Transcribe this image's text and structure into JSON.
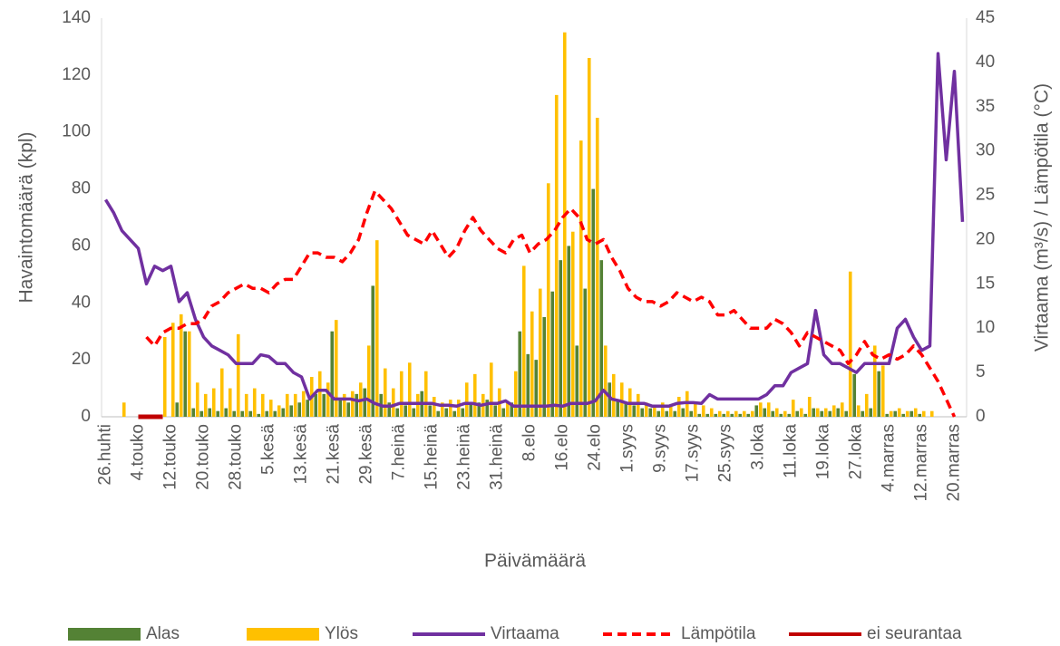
{
  "chart_data": {
    "type": "combo",
    "x_label": "Päivämäärä",
    "y_label": "Havaintomäärä (kpl)",
    "y2_label": "Virtaama (m³/s) / Lämpötila (°C)",
    "legend": "bottom",
    "grid": false,
    "ylim": [
      0,
      140
    ],
    "yticks": [
      0,
      20,
      40,
      60,
      80,
      100,
      120,
      140
    ],
    "y2lim": [
      0,
      45
    ],
    "y2ticks": [
      0,
      5,
      10,
      15,
      20,
      25,
      30,
      35,
      40,
      45
    ],
    "categories": [
      "26.huhti",
      null,
      null,
      null,
      "4.touko",
      null,
      null,
      null,
      "12.touko",
      null,
      null,
      null,
      "20.touko",
      null,
      null,
      null,
      "28.touko",
      null,
      null,
      null,
      "5.kesä",
      null,
      null,
      null,
      "13.kesä",
      null,
      null,
      null,
      "21.kesä",
      null,
      null,
      null,
      "29.kesä",
      null,
      null,
      null,
      "7.heinä",
      null,
      null,
      null,
      "15.heinä",
      null,
      null,
      null,
      "23.heinä",
      null,
      null,
      null,
      "31.heinä",
      null,
      null,
      null,
      "8.elo",
      null,
      null,
      null,
      "16.elo",
      null,
      null,
      null,
      "24.elo",
      null,
      null,
      null,
      "1.syys",
      null,
      null,
      null,
      "9.syys",
      null,
      null,
      null,
      "17.syys",
      null,
      null,
      null,
      "25.syys",
      null,
      null,
      null,
      "3.loka",
      null,
      null,
      null,
      "11.loka",
      null,
      null,
      null,
      "19.loka",
      null,
      null,
      null,
      "27.loka",
      null,
      null,
      null,
      "4.marras",
      null,
      null,
      null,
      "12.marras",
      null,
      null,
      null,
      "20.marras",
      null
    ],
    "series": [
      {
        "name": "Alas",
        "type": "bar",
        "color": "#548235",
        "values": [
          0,
          0,
          0,
          0,
          0,
          0,
          0,
          0,
          0,
          5,
          30,
          3,
          2,
          3,
          2,
          3,
          2,
          2,
          2,
          1,
          2,
          2,
          3,
          4,
          5,
          6,
          8,
          8,
          30,
          6,
          5,
          8,
          10,
          46,
          8,
          5,
          3,
          4,
          3,
          9,
          4,
          2,
          3,
          2,
          3,
          5,
          5,
          6,
          4,
          3,
          5,
          30,
          22,
          20,
          35,
          44,
          55,
          60,
          25,
          45,
          80,
          55,
          12,
          6,
          5,
          4,
          3,
          3,
          2,
          2,
          2,
          3,
          2,
          1,
          1,
          1,
          1,
          1,
          1,
          1,
          4,
          3,
          2,
          1,
          1,
          2,
          1,
          3,
          2,
          2,
          3,
          2,
          15,
          2,
          3,
          16,
          1,
          2,
          1,
          2,
          1,
          0,
          0,
          0,
          0,
          0
        ]
      },
      {
        "name": "Ylös",
        "type": "bar",
        "color": "#ffc000",
        "values": [
          0,
          0,
          5,
          0,
          0,
          0,
          0,
          28,
          33,
          36,
          30,
          12,
          8,
          10,
          17,
          10,
          29,
          8,
          10,
          8,
          6,
          4,
          8,
          8,
          9,
          14,
          16,
          12,
          34,
          8,
          9,
          12,
          25,
          62,
          17,
          10,
          16,
          19,
          8,
          16,
          7,
          5,
          6,
          6,
          12,
          15,
          8,
          19,
          10,
          5,
          16,
          53,
          37,
          45,
          82,
          113,
          135,
          65,
          97,
          126,
          105,
          25,
          15,
          12,
          10,
          8,
          5,
          4,
          5,
          4,
          7,
          9,
          5,
          4,
          3,
          2,
          2,
          2,
          2,
          2,
          5,
          5,
          3,
          2,
          6,
          3,
          7,
          3,
          3,
          4,
          5,
          51,
          4,
          8,
          25,
          18,
          2,
          3,
          2,
          3,
          2,
          2,
          0,
          0,
          0,
          0
        ]
      },
      {
        "name": "Virtaama",
        "type": "line",
        "axis": "y2",
        "color": "#7030a0",
        "values": [
          24.5,
          23,
          21,
          20,
          19,
          15,
          17,
          16.5,
          17,
          13,
          14,
          11,
          9,
          8,
          7.5,
          7,
          6,
          6,
          6,
          7,
          6.8,
          6,
          6,
          5,
          4.5,
          2,
          3,
          3,
          2,
          2,
          2,
          1.8,
          2,
          1.5,
          1.2,
          1.2,
          1.5,
          1.5,
          1.5,
          1.5,
          1.5,
          1.3,
          1.3,
          1.2,
          1.5,
          1.5,
          1.3,
          1.5,
          1.5,
          1.8,
          1.2,
          1.2,
          1.2,
          1.2,
          1.2,
          1.3,
          1.2,
          1.5,
          1.5,
          1.5,
          1.8,
          3,
          2,
          1.8,
          1.5,
          1.5,
          1.5,
          1.2,
          1.2,
          1.2,
          1.5,
          1.6,
          1.6,
          1.5,
          2.5,
          2,
          2,
          2,
          2,
          2,
          2,
          2.5,
          3.5,
          3.5,
          5,
          5.5,
          6,
          12,
          7,
          6,
          6,
          5.5,
          5,
          6,
          6,
          6,
          6,
          10,
          11,
          9,
          7.5,
          8,
          41,
          29,
          39,
          22
        ]
      },
      {
        "name": "Lämpötila",
        "type": "line",
        "axis": "y2",
        "dash": true,
        "color": "#ff0000",
        "values": [
          null,
          null,
          null,
          null,
          null,
          9,
          8,
          9.5,
          10,
          10,
          10.5,
          10.5,
          11,
          12.5,
          13,
          14,
          14.5,
          15,
          14.5,
          14.5,
          14,
          15,
          15.5,
          15.5,
          17,
          18.5,
          18.5,
          18,
          18,
          17.5,
          18.5,
          20,
          23,
          25.5,
          24.5,
          23.5,
          22,
          20.5,
          20,
          19.5,
          21,
          19.5,
          18,
          19,
          21,
          22.5,
          21,
          20,
          19,
          18.5,
          20,
          20.5,
          18.5,
          19.5,
          20,
          21,
          22.5,
          23.5,
          22.5,
          20,
          19.5,
          20,
          18,
          16.5,
          14.5,
          13.5,
          13,
          13,
          12.5,
          13,
          14,
          13.5,
          13,
          13.5,
          13,
          11.5,
          11.5,
          12,
          11,
          10,
          10,
          10,
          11,
          10.5,
          9.5,
          8,
          9.5,
          9,
          8.5,
          8,
          7.5,
          6,
          7,
          8.5,
          7,
          6.5,
          7,
          6.5,
          7,
          8,
          7,
          5.5,
          4,
          2,
          0,
          null
        ]
      },
      {
        "name": "ei seurantaa",
        "type": "line",
        "color": "#c00000",
        "values": [
          null,
          null,
          null,
          null,
          0,
          0,
          0,
          0,
          null,
          null,
          null,
          null,
          null,
          null,
          null,
          null,
          null,
          null,
          null,
          null,
          null,
          null,
          null,
          null,
          null,
          null,
          null,
          null,
          null,
          null,
          null,
          null,
          null,
          null,
          null,
          null,
          null,
          null,
          null,
          null,
          null,
          null,
          null,
          null,
          null,
          null,
          null,
          null,
          null,
          null,
          null,
          null,
          null,
          null,
          null,
          null,
          null,
          null,
          null,
          null,
          null,
          null,
          null,
          null,
          null,
          null,
          null,
          null,
          null,
          null,
          null,
          null,
          null,
          null,
          null,
          null,
          null,
          null,
          null,
          null,
          null,
          null,
          null,
          null,
          null,
          null,
          null,
          null,
          null,
          null,
          null,
          null,
          null,
          null,
          null,
          null,
          null,
          null,
          null,
          null,
          null,
          null,
          null,
          null,
          null,
          null
        ]
      }
    ]
  }
}
